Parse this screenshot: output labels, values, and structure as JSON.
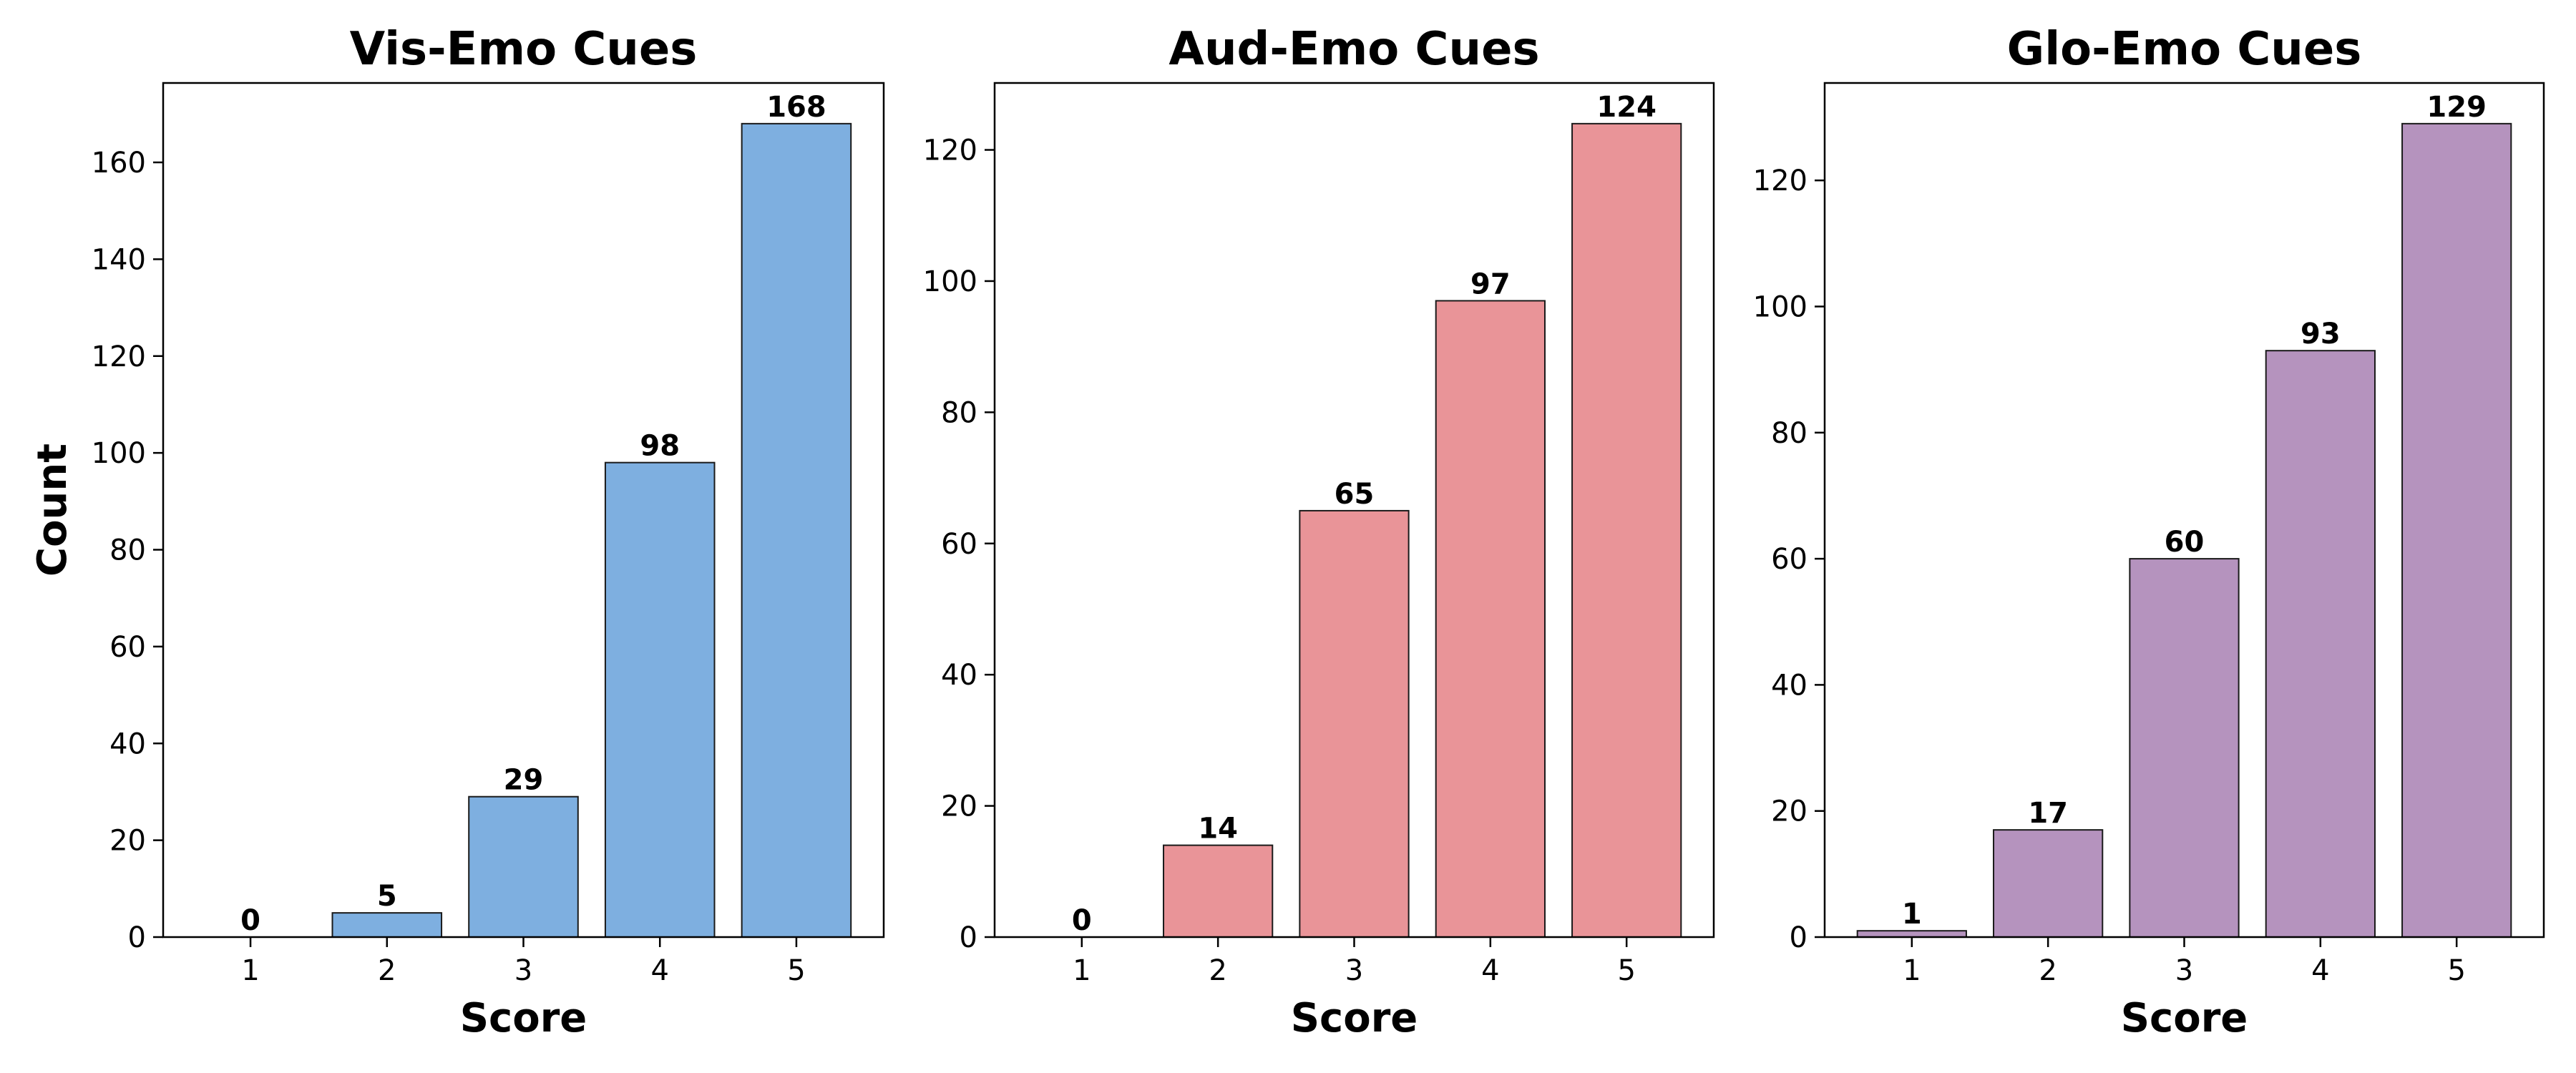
{
  "chart_data": [
    {
      "type": "bar",
      "title": "Vis-Emo Cues",
      "xlabel": "Score",
      "ylabel": "Count",
      "categories": [
        "1",
        "2",
        "3",
        "4",
        "5"
      ],
      "values": [
        0,
        5,
        29,
        98,
        168
      ],
      "ylim": [
        0,
        176.4
      ],
      "yticks": [
        0,
        20,
        40,
        60,
        80,
        100,
        120,
        140,
        160
      ],
      "color": "#7eafe0",
      "grid": false
    },
    {
      "type": "bar",
      "title": "Aud-Emo Cues",
      "xlabel": "Score",
      "ylabel": "",
      "categories": [
        "1",
        "2",
        "3",
        "4",
        "5"
      ],
      "values": [
        0,
        14,
        65,
        97,
        124
      ],
      "ylim": [
        0,
        130.2
      ],
      "yticks": [
        0,
        20,
        40,
        60,
        80,
        100,
        120
      ],
      "color": "#e99498",
      "grid": false
    },
    {
      "type": "bar",
      "title": "Glo-Emo Cues",
      "xlabel": "Score",
      "ylabel": "",
      "categories": [
        "1",
        "2",
        "3",
        "4",
        "5"
      ],
      "values": [
        1,
        17,
        60,
        93,
        129
      ],
      "ylim": [
        0,
        135.45
      ],
      "yticks": [
        0,
        20,
        40,
        60,
        80,
        100,
        120
      ],
      "color": "#b593be",
      "grid": false
    }
  ]
}
